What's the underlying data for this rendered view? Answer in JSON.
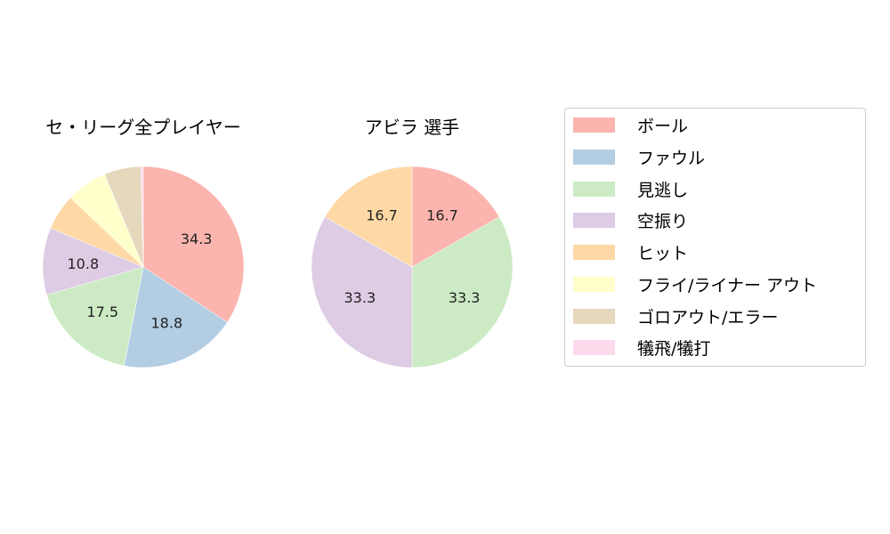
{
  "chart_data": [
    {
      "type": "pie",
      "title": "セ・リーグ全プレイヤー",
      "categories": [
        "ボール",
        "ファウル",
        "見逃し",
        "空振り",
        "ヒット",
        "フライ/ライナー アウト",
        "ゴロアウト/エラー",
        "犠飛/犠打"
      ],
      "values": [
        34.3,
        18.8,
        17.5,
        10.8,
        5.8,
        6.6,
        5.9,
        0.4
      ],
      "labels_shown": [
        "34.3",
        "18.8",
        "17.5",
        "10.8",
        "",
        "",
        "",
        ""
      ]
    },
    {
      "type": "pie",
      "title": "アビラ  選手",
      "categories": [
        "ボール",
        "ファウル",
        "見逃し",
        "空振り",
        "ヒット",
        "フライ/ライナー アウト",
        "ゴロアウト/エラー",
        "犠飛/犠打"
      ],
      "values": [
        16.7,
        0,
        33.3,
        33.3,
        16.7,
        0,
        0,
        0
      ],
      "labels_shown": [
        "16.7",
        "",
        "33.3",
        "33.3",
        "16.7",
        "",
        "",
        ""
      ]
    }
  ],
  "legend": {
    "items": [
      {
        "label": "ボール",
        "color": "#fbb4ae"
      },
      {
        "label": "ファウル",
        "color": "#b3cde3"
      },
      {
        "label": "見逃し",
        "color": "#ccebc5"
      },
      {
        "label": "空振り",
        "color": "#decbe4"
      },
      {
        "label": "ヒット",
        "color": "#fed9a6"
      },
      {
        "label": "フライ/ライナー アウト",
        "color": "#ffffcc"
      },
      {
        "label": "ゴロアウト/エラー",
        "color": "#e5d8bd"
      },
      {
        "label": "犠飛/犠打",
        "color": "#fddaec"
      }
    ]
  }
}
